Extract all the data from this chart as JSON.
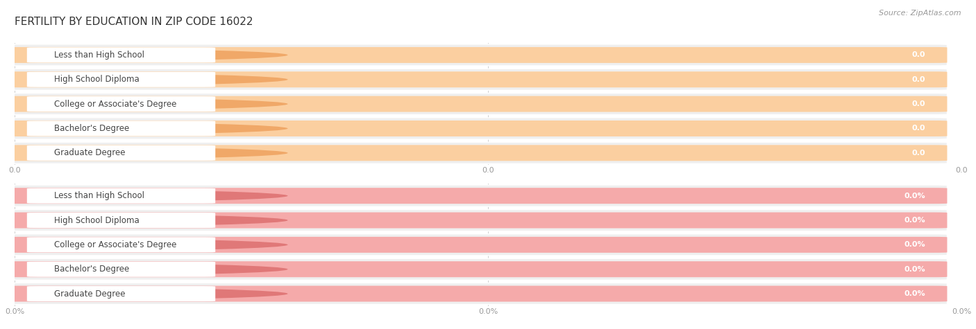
{
  "title": "FERTILITY BY EDUCATION IN ZIP CODE 16022",
  "source": "Source: ZipAtlas.com",
  "categories": [
    "Less than High School",
    "High School Diploma",
    "College or Associate's Degree",
    "Bachelor's Degree",
    "Graduate Degree"
  ],
  "top_values": [
    0.0,
    0.0,
    0.0,
    0.0,
    0.0
  ],
  "bottom_values": [
    0.0,
    0.0,
    0.0,
    0.0,
    0.0
  ],
  "top_bar_color": "#FBCFA0",
  "top_bar_bg": "#EFEFEF",
  "top_accent_color": "#F0A868",
  "bottom_bar_color": "#F5AAAA",
  "bottom_bar_bg": "#EFEFEF",
  "bottom_accent_color": "#E07878",
  "bg_color": "#FFFFFF",
  "row_bg_color": "#EFEFEF",
  "grid_color": "#CCCCCC",
  "title_fontsize": 11,
  "label_fontsize": 8.5,
  "value_fontsize": 8.0,
  "source_fontsize": 8,
  "tick_fontsize": 8,
  "title_color": "#333333",
  "label_text_color": "#444444",
  "value_text_color": "#FFFFFF",
  "tick_color": "#999999",
  "source_color": "#999999"
}
